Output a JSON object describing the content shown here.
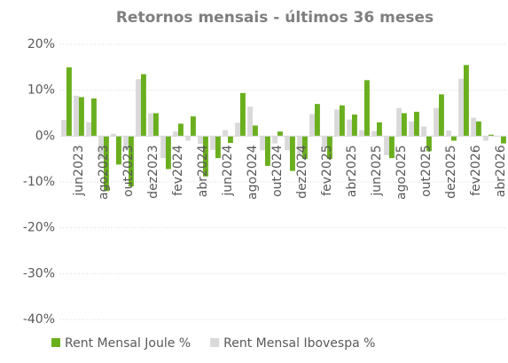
{
  "chart_data": {
    "type": "bar",
    "title": "Retornos mensais - últimos 36 meses",
    "categories": [
      null,
      "jun2023",
      null,
      "ago2023",
      null,
      "out2023",
      null,
      "dez2023",
      null,
      "fev2024",
      null,
      "abr2024",
      null,
      "jun2024",
      null,
      "ago2024",
      null,
      "out2024",
      null,
      "dez2024",
      null,
      "fev2025",
      null,
      "abr2025",
      null,
      "jun2025",
      null,
      "ago2025",
      null,
      "out2025",
      null,
      "dez2025",
      null,
      "fev2026",
      null,
      "abr2026"
    ],
    "series": [
      {
        "name": "Rent Mensal Joule %",
        "color": "#6aaf1e",
        "values": [
          15,
          8.5,
          8.2,
          -12,
          -6.2,
          -11,
          13.5,
          5,
          -7.2,
          2.7,
          4.3,
          -8.8,
          -4.8,
          -1.5,
          9.4,
          2.3,
          -6.5,
          1,
          -7.6,
          -5,
          7,
          -5,
          6.7,
          4.7,
          12.2,
          3,
          -4.8,
          5,
          5.3,
          -3.3,
          9.1,
          -1,
          15.5,
          3.2,
          0.3,
          -1.6
        ]
      },
      {
        "name": "Rent Mensal Ibovespa %",
        "color": "#d9d9d9",
        "values": [
          3.5,
          8.8,
          3,
          -5,
          0.5,
          -3,
          12.4,
          5,
          -4.8,
          1,
          -1,
          -1.7,
          -3,
          1.3,
          2.9,
          6.4,
          -3.1,
          -1.6,
          -3.1,
          -4.2,
          4.8,
          -2.6,
          5.8,
          3.6,
          1.3,
          1.1,
          -4.2,
          6.1,
          3.2,
          2.1,
          6.1,
          1.2,
          12.5,
          4,
          -1,
          0
        ]
      }
    ],
    "ylim": [
      -40,
      20
    ],
    "yticks": [
      {
        "value": -40,
        "label": "-40%"
      },
      {
        "value": -30,
        "label": "-30%"
      },
      {
        "value": -20,
        "label": "-20%"
      },
      {
        "value": -10,
        "label": "-10%"
      },
      {
        "value": 0,
        "label": "0%"
      },
      {
        "value": 10,
        "label": "10%"
      },
      {
        "value": 20,
        "label": "20%"
      }
    ],
    "grid": true,
    "legend": "bottom"
  }
}
